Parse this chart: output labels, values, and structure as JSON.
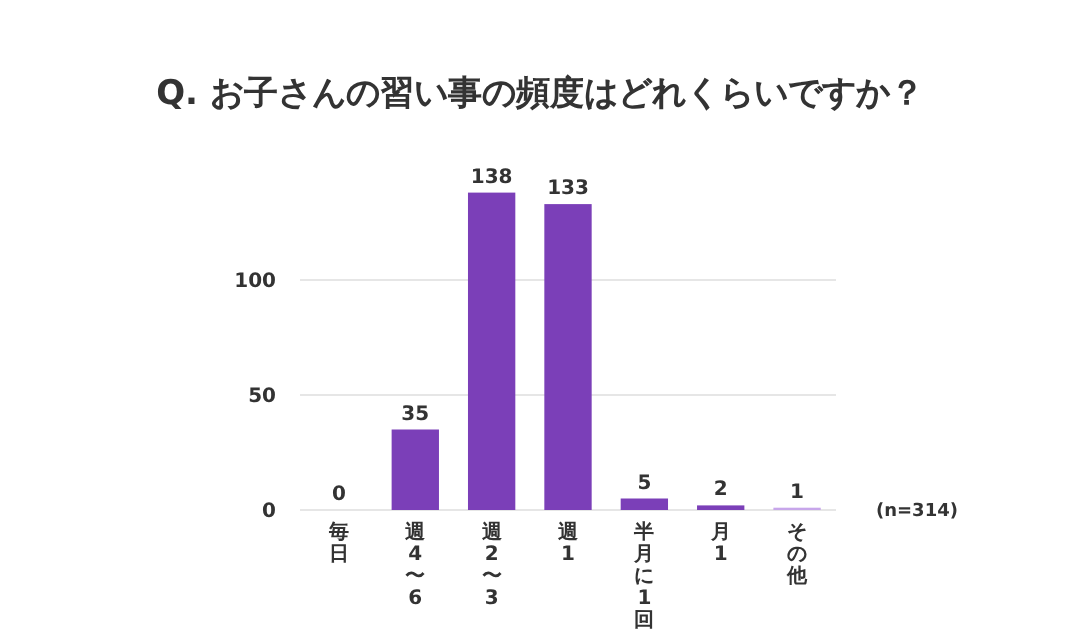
{
  "chart_data": {
    "type": "bar",
    "title": "Q.  お子さんの習い事の頻度はどれくらいですか？",
    "categories": [
      "毎日",
      "週4〜6",
      "週2〜3",
      "週1",
      "半月に1回",
      "月1",
      "その他"
    ],
    "values": [
      0,
      35,
      138,
      133,
      5,
      2,
      1
    ],
    "colors": [
      "#7b3fb8",
      "#7b3fb8",
      "#7b3fb8",
      "#7b3fb8",
      "#7b3fb8",
      "#7b3fb8",
      "#c7a6ea"
    ],
    "ylim": [
      0,
      140
    ],
    "yticks": [
      0,
      50,
      100
    ],
    "grid": "y",
    "data_labels": true,
    "annotations": [
      "(n=314)"
    ]
  }
}
